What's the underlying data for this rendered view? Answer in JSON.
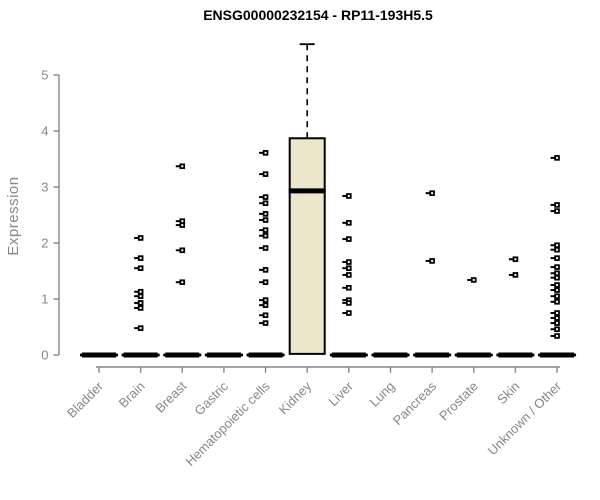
{
  "chart_data": {
    "type": "box",
    "title": "ENSG00000232154 - RP11-193H5.5",
    "ylabel": "Expression",
    "xlabel": "",
    "ylim": [
      0,
      5.6
    ],
    "yticks": [
      0,
      1,
      2,
      3,
      4,
      5
    ],
    "grid": false,
    "legend": null,
    "categories": [
      "Bladder",
      "Brain",
      "Breast",
      "Gastric",
      "Hematopoietic cells",
      "Kidney",
      "Liver",
      "Lung",
      "Pancreas",
      "Prostate",
      "Skin",
      "Unknown / Other"
    ],
    "groups": [
      {
        "label": "Bladder",
        "zero_bar": true,
        "box": null,
        "points": []
      },
      {
        "label": "Brain",
        "zero_bar": true,
        "box": null,
        "points": [
          2.09,
          1.73,
          1.55,
          1.13,
          1.05,
          0.93,
          0.84,
          0.48
        ]
      },
      {
        "label": "Breast",
        "zero_bar": true,
        "box": null,
        "points": [
          3.37,
          2.39,
          2.32,
          1.87,
          1.3
        ]
      },
      {
        "label": "Gastric",
        "zero_bar": true,
        "box": null,
        "points": []
      },
      {
        "label": "Hematopoietic cells",
        "zero_bar": true,
        "box": null,
        "points": [
          3.61,
          3.23,
          2.82,
          2.71,
          2.52,
          2.41,
          2.23,
          2.13,
          1.91,
          1.52,
          1.3,
          0.98,
          0.89,
          0.71,
          0.57
        ]
      },
      {
        "label": "Kidney",
        "zero_bar": false,
        "box": {
          "whisker_low": 0.02,
          "q1": 0.02,
          "median": 2.93,
          "q3": 3.87,
          "whisker_high": 5.55
        },
        "points": []
      },
      {
        "label": "Liver",
        "zero_bar": true,
        "box": null,
        "points": [
          2.84,
          2.36,
          2.07,
          1.66,
          1.55,
          1.43,
          1.2,
          0.98,
          0.93,
          0.75
        ]
      },
      {
        "label": "Lung",
        "zero_bar": true,
        "box": null,
        "points": []
      },
      {
        "label": "Pancreas",
        "zero_bar": true,
        "box": null,
        "points": [
          2.89,
          1.68
        ]
      },
      {
        "label": "Prostate",
        "zero_bar": true,
        "box": null,
        "points": [
          1.34
        ]
      },
      {
        "label": "Skin",
        "zero_bar": true,
        "box": null,
        "points": [
          1.71,
          1.43
        ]
      },
      {
        "label": "Unknown / Other",
        "zero_bar": true,
        "box": null,
        "points": [
          3.52,
          2.68,
          2.57,
          1.96,
          1.88,
          1.73,
          1.57,
          1.46,
          1.38,
          1.25,
          1.16,
          1.05,
          0.95,
          0.75,
          0.66,
          0.57,
          0.46,
          0.34
        ]
      }
    ],
    "colors": {
      "box_fill": "#ece7cb",
      "box_stroke": "#000000",
      "marker": "#000000",
      "axis": "#878787",
      "tick_text": "#878787",
      "title_text": "#000000"
    }
  }
}
